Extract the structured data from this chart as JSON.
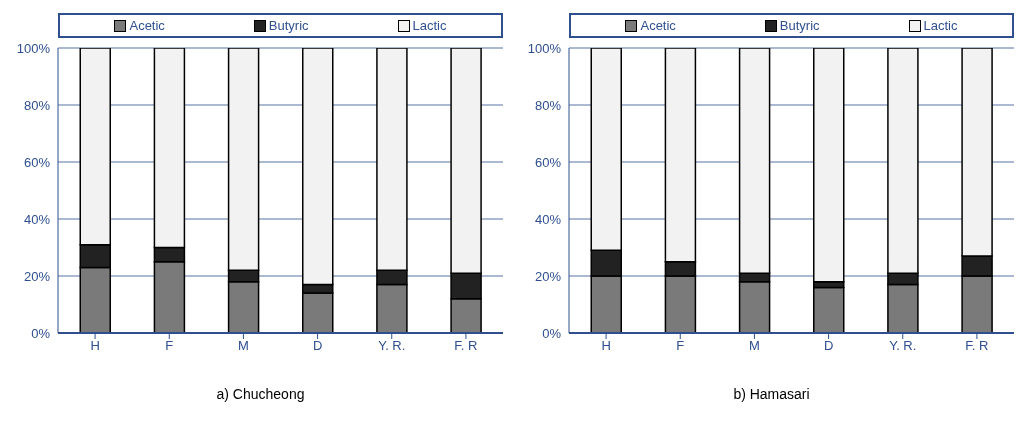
{
  "chart_data": [
    {
      "type": "bar",
      "title": "a)  Chucheong",
      "categories": [
        "H",
        "F",
        "M",
        "D",
        "Y. R.",
        "F. R"
      ],
      "stacked": true,
      "ylim": [
        0,
        100
      ],
      "yticks": [
        {
          "value": 0,
          "label": "0%"
        },
        {
          "value": 20,
          "label": "20%"
        },
        {
          "value": 40,
          "label": "40%"
        },
        {
          "value": 60,
          "label": "60%"
        },
        {
          "value": 80,
          "label": "80%"
        },
        {
          "value": 100,
          "label": "100%"
        }
      ],
      "grid": "y",
      "legend": "top",
      "series": [
        {
          "name": "Acetic",
          "color": "#7a7a7a",
          "values": [
            23,
            25,
            18,
            14,
            17,
            12
          ]
        },
        {
          "name": "Butyric",
          "color": "#222222",
          "values": [
            8,
            5,
            4,
            3,
            5,
            9
          ]
        },
        {
          "name": "Lactic",
          "color": "#f2f2f2",
          "values": [
            69,
            70,
            78,
            83,
            78,
            79
          ]
        }
      ]
    },
    {
      "type": "bar",
      "title": "b)  Hamasari",
      "categories": [
        "H",
        "F",
        "M",
        "D",
        "Y. R.",
        "F. R"
      ],
      "stacked": true,
      "ylim": [
        0,
        100
      ],
      "yticks": [
        {
          "value": 0,
          "label": "0%"
        },
        {
          "value": 20,
          "label": "20%"
        },
        {
          "value": 40,
          "label": "40%"
        },
        {
          "value": 60,
          "label": "60%"
        },
        {
          "value": 80,
          "label": "80%"
        },
        {
          "value": 100,
          "label": "100%"
        }
      ],
      "grid": "y",
      "legend": "top",
      "series": [
        {
          "name": "Acetic",
          "color": "#7a7a7a",
          "values": [
            20,
            20,
            18,
            16,
            17,
            20
          ]
        },
        {
          "name": "Butyric",
          "color": "#222222",
          "values": [
            9,
            5,
            3,
            2,
            4,
            7
          ]
        },
        {
          "name": "Lactic",
          "color": "#f2f2f2",
          "values": [
            71,
            75,
            79,
            82,
            79,
            73
          ]
        }
      ]
    }
  ]
}
